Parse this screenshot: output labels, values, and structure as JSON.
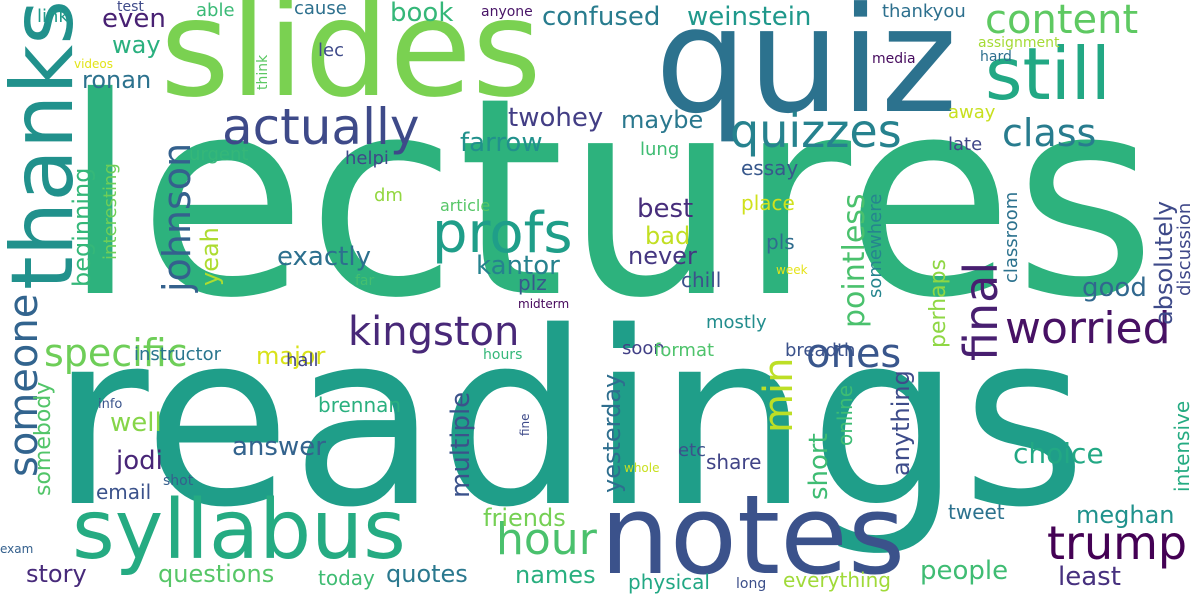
{
  "word_cloud": {
    "words": [
      {
        "text": "lectures",
        "color": "#2db27d"
      },
      {
        "text": "readings",
        "color": "#1f9e89"
      },
      {
        "text": "slides",
        "color": "#7ad151"
      },
      {
        "text": "quiz",
        "color": "#2c728e"
      },
      {
        "text": "notes",
        "color": "#3b528b"
      },
      {
        "text": "syllabus",
        "color": "#25ab82"
      },
      {
        "text": "thanks",
        "color": "#21918c"
      },
      {
        "text": "still",
        "color": "#22a884"
      },
      {
        "text": "content",
        "color": "#5ec962"
      },
      {
        "text": "profs",
        "color": "#1f9e89"
      },
      {
        "text": "actually",
        "color": "#3e4a89"
      },
      {
        "text": "quizzes",
        "color": "#26828e"
      },
      {
        "text": "class",
        "color": "#287c8e"
      },
      {
        "text": "kingston",
        "color": "#482878"
      },
      {
        "text": "worried",
        "color": "#471164"
      },
      {
        "text": "final",
        "color": "#481f70"
      },
      {
        "text": "trump",
        "color": "#440154"
      },
      {
        "text": "hour",
        "color": "#4ac16d"
      },
      {
        "text": "someone",
        "color": "#32648e"
      },
      {
        "text": "specific",
        "color": "#6ece58"
      },
      {
        "text": "johnson",
        "color": "#34618d"
      },
      {
        "text": "ones",
        "color": "#39568c"
      },
      {
        "text": "min",
        "color": "#bddf26"
      },
      {
        "text": "confused",
        "color": "#287c8e"
      },
      {
        "text": "weinstein",
        "color": "#1f988b"
      },
      {
        "text": "book",
        "color": "#35b779"
      },
      {
        "text": "farrow",
        "color": "#21918c"
      },
      {
        "text": "twohey",
        "color": "#433e85"
      },
      {
        "text": "maybe",
        "color": "#2a788e"
      },
      {
        "text": "exactly",
        "color": "#2d708e"
      },
      {
        "text": "kantor",
        "color": "#26828e"
      },
      {
        "text": "never",
        "color": "#453781"
      },
      {
        "text": "best",
        "color": "#472d7b"
      },
      {
        "text": "bad",
        "color": "#c2df23"
      },
      {
        "text": "good",
        "color": "#31688e"
      },
      {
        "text": "pointless",
        "color": "#4ac16d"
      },
      {
        "text": "perhaps",
        "color": "#8fd744"
      },
      {
        "text": "absolutely",
        "color": "#3e4a89"
      },
      {
        "text": "yeah",
        "color": "#addc30"
      },
      {
        "text": "beginning",
        "color": "#35b779"
      },
      {
        "text": "answer",
        "color": "#33638d"
      },
      {
        "text": "jodi",
        "color": "#482677"
      },
      {
        "text": "well",
        "color": "#86d549"
      },
      {
        "text": "multiple",
        "color": "#3b528b"
      },
      {
        "text": "yesterday",
        "color": "#2e6e8e"
      },
      {
        "text": "choice",
        "color": "#22a884"
      },
      {
        "text": "short",
        "color": "#3fbc73"
      },
      {
        "text": "anything",
        "color": "#3e4c8a"
      },
      {
        "text": "friends",
        "color": "#75d054"
      },
      {
        "text": "meghan",
        "color": "#20928c"
      },
      {
        "text": "least",
        "color": "#46307e"
      },
      {
        "text": "people",
        "color": "#3fbc73"
      },
      {
        "text": "questions",
        "color": "#56c667"
      },
      {
        "text": "quotes",
        "color": "#2a788e"
      },
      {
        "text": "names",
        "color": "#29af7f"
      },
      {
        "text": "story",
        "color": "#472a7a"
      },
      {
        "text": "major",
        "color": "#d8e219"
      },
      {
        "text": "ronan",
        "color": "#2c728e"
      },
      {
        "text": "even",
        "color": "#482173"
      },
      {
        "text": "way",
        "color": "#2ab07f"
      },
      {
        "text": "somebody",
        "color": "#52c569"
      },
      {
        "text": "tweet",
        "color": "#2c728e"
      },
      {
        "text": "everything",
        "color": "#a0da39"
      },
      {
        "text": "physical",
        "color": "#22a884"
      },
      {
        "text": "today",
        "color": "#3fbc73"
      },
      {
        "text": "brennan",
        "color": "#2ab07f"
      },
      {
        "text": "email",
        "color": "#3b528b"
      },
      {
        "text": "share",
        "color": "#414487"
      },
      {
        "text": "etc",
        "color": "#3b528b"
      },
      {
        "text": "online",
        "color": "#3dbc74"
      },
      {
        "text": "intensive",
        "color": "#25ab82"
      },
      {
        "text": "discussion",
        "color": "#3f4889"
      },
      {
        "text": "classroom",
        "color": "#2c728e"
      },
      {
        "text": "somewhere",
        "color": "#25858e"
      },
      {
        "text": "late",
        "color": "#404688"
      },
      {
        "text": "away",
        "color": "#c8e020"
      },
      {
        "text": "essay",
        "color": "#38588c"
      },
      {
        "text": "place",
        "color": "#d0e11c"
      },
      {
        "text": "pls",
        "color": "#2f6c8e"
      },
      {
        "text": "chill",
        "color": "#3b528b"
      },
      {
        "text": "plz",
        "color": "#38588c"
      },
      {
        "text": "soon",
        "color": "#424086"
      },
      {
        "text": "mostly",
        "color": "#228d8d"
      },
      {
        "text": "format",
        "color": "#4ec36b"
      },
      {
        "text": "breadth",
        "color": "#3b528b"
      },
      {
        "text": "instructor",
        "color": "#2a768e"
      },
      {
        "text": "hall",
        "color": "#414487"
      },
      {
        "text": "hours",
        "color": "#35b779"
      },
      {
        "text": "helpi",
        "color": "#3f4889"
      },
      {
        "text": "lec",
        "color": "#3e4a89"
      },
      {
        "text": "dm",
        "color": "#93d741"
      },
      {
        "text": "article",
        "color": "#56c667"
      },
      {
        "text": "urgent",
        "color": "#35b779"
      },
      {
        "text": "interesting",
        "color": "#6ece58"
      },
      {
        "text": "lung",
        "color": "#3fbc73"
      },
      {
        "text": "link",
        "color": "#1f9a8a"
      },
      {
        "text": "test",
        "color": "#3e4a89"
      },
      {
        "text": "able",
        "color": "#3aba76"
      },
      {
        "text": "cause",
        "color": "#2d708e"
      },
      {
        "text": "anyone",
        "color": "#481467"
      },
      {
        "text": "thankyou",
        "color": "#2d708e"
      },
      {
        "text": "assignment",
        "color": "#a5db36"
      },
      {
        "text": "hard",
        "color": "#2e6f8e"
      },
      {
        "text": "media",
        "color": "#460b5e"
      },
      {
        "text": "think",
        "color": "#5cc863"
      },
      {
        "text": "videos",
        "color": "#e2e418"
      },
      {
        "text": "week",
        "color": "#e5e419"
      },
      {
        "text": "far",
        "color": "#44bf70"
      },
      {
        "text": "midterm",
        "color": "#46085c"
      },
      {
        "text": "info",
        "color": "#3a548c"
      },
      {
        "text": "fine",
        "color": "#3e4a89"
      },
      {
        "text": "whole",
        "color": "#c8e020"
      },
      {
        "text": "shot",
        "color": "#355f8d"
      },
      {
        "text": "exam",
        "color": "#34608d"
      },
      {
        "text": "long",
        "color": "#3c4f8a"
      }
    ]
  }
}
